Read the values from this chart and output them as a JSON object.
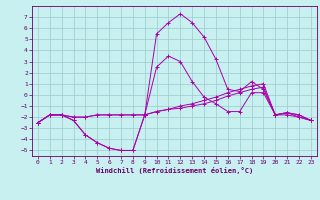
{
  "xlabel": "Windchill (Refroidissement éolien,°C)",
  "background_color": "#c8f0f0",
  "grid_color": "#99cccc",
  "line_color": "#aa00aa",
  "x": [
    0,
    1,
    2,
    3,
    4,
    5,
    6,
    7,
    8,
    9,
    10,
    11,
    12,
    13,
    14,
    15,
    16,
    17,
    18,
    19,
    20,
    21,
    22,
    23
  ],
  "line1": [
    -2.5,
    -1.8,
    -1.8,
    -2.3,
    -3.6,
    -4.3,
    -4.8,
    -5.0,
    -5.0,
    -1.8,
    5.5,
    6.5,
    7.3,
    6.5,
    5.2,
    3.2,
    0.5,
    0.3,
    1.2,
    0.5,
    -1.8,
    -1.8,
    -2.0,
    -2.3
  ],
  "line2": [
    -2.5,
    -1.8,
    -1.8,
    -2.3,
    -3.6,
    -4.3,
    -4.8,
    -5.0,
    -5.0,
    -1.8,
    2.5,
    3.5,
    3.0,
    1.2,
    -0.2,
    -0.8,
    -1.5,
    -1.5,
    0.2,
    0.2,
    -1.8,
    -1.6,
    -2.0,
    -2.3
  ],
  "line3": [
    -2.5,
    -1.8,
    -1.8,
    -2.0,
    -2.0,
    -1.8,
    -1.8,
    -1.8,
    -1.8,
    -1.8,
    -1.5,
    -1.3,
    -1.0,
    -0.8,
    -0.5,
    -0.2,
    0.2,
    0.5,
    0.8,
    1.0,
    -1.8,
    -1.6,
    -1.8,
    -2.3
  ],
  "line4": [
    -2.5,
    -1.8,
    -1.8,
    -2.0,
    -2.0,
    -1.8,
    -1.8,
    -1.8,
    -1.8,
    -1.8,
    -1.5,
    -1.3,
    -1.2,
    -1.0,
    -0.8,
    -0.5,
    -0.1,
    0.2,
    0.5,
    0.7,
    -1.8,
    -1.6,
    -1.8,
    -2.3
  ],
  "ylim": [
    -5.5,
    8.0
  ],
  "xlim": [
    -0.5,
    23.5
  ],
  "yticks": [
    -5,
    -4,
    -3,
    -2,
    -1,
    0,
    1,
    2,
    3,
    4,
    5,
    6,
    7
  ],
  "xticks": [
    0,
    1,
    2,
    3,
    4,
    5,
    6,
    7,
    8,
    9,
    10,
    11,
    12,
    13,
    14,
    15,
    16,
    17,
    18,
    19,
    20,
    21,
    22,
    23
  ]
}
